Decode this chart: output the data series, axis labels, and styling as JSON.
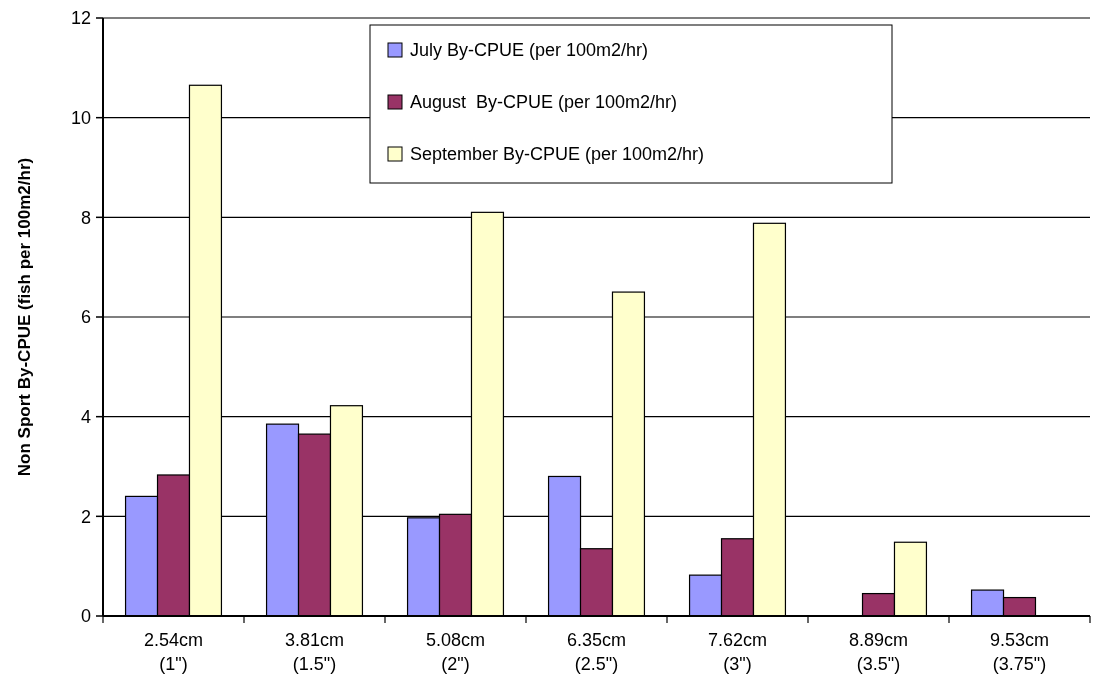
{
  "chart_data": {
    "type": "bar",
    "ylabel": "Non Sport By-CPUE (fish per 100m2/hr)",
    "categories": [
      "2.54cm\n(1\")",
      "3.81cm\n(1.5\")",
      "5.08cm\n(2\")",
      "6.35cm\n(2.5\")",
      "7.62cm\n(3\")",
      "8.89cm\n(3.5\")",
      "9.53cm\n(3.75\")"
    ],
    "series": [
      {
        "name": "July By-CPUE (per 100m2/hr)",
        "color": "#9999ff",
        "values": [
          2.4,
          3.85,
          1.97,
          2.8,
          0.82,
          0,
          0.52
        ]
      },
      {
        "name": "August  By-CPUE (per 100m2/hr)",
        "color": "#993366",
        "values": [
          2.83,
          3.65,
          2.04,
          1.35,
          1.55,
          0.45,
          0.37
        ]
      },
      {
        "name": "September By-CPUE (per 100m2/hr)",
        "color": "#ffffcc",
        "values": [
          10.65,
          4.22,
          8.1,
          6.5,
          7.88,
          1.48,
          0
        ]
      }
    ],
    "ylim": [
      0,
      12
    ],
    "yticks": [
      0,
      2,
      4,
      6,
      8,
      10,
      12
    ],
    "grid": "y",
    "legend": "top"
  }
}
